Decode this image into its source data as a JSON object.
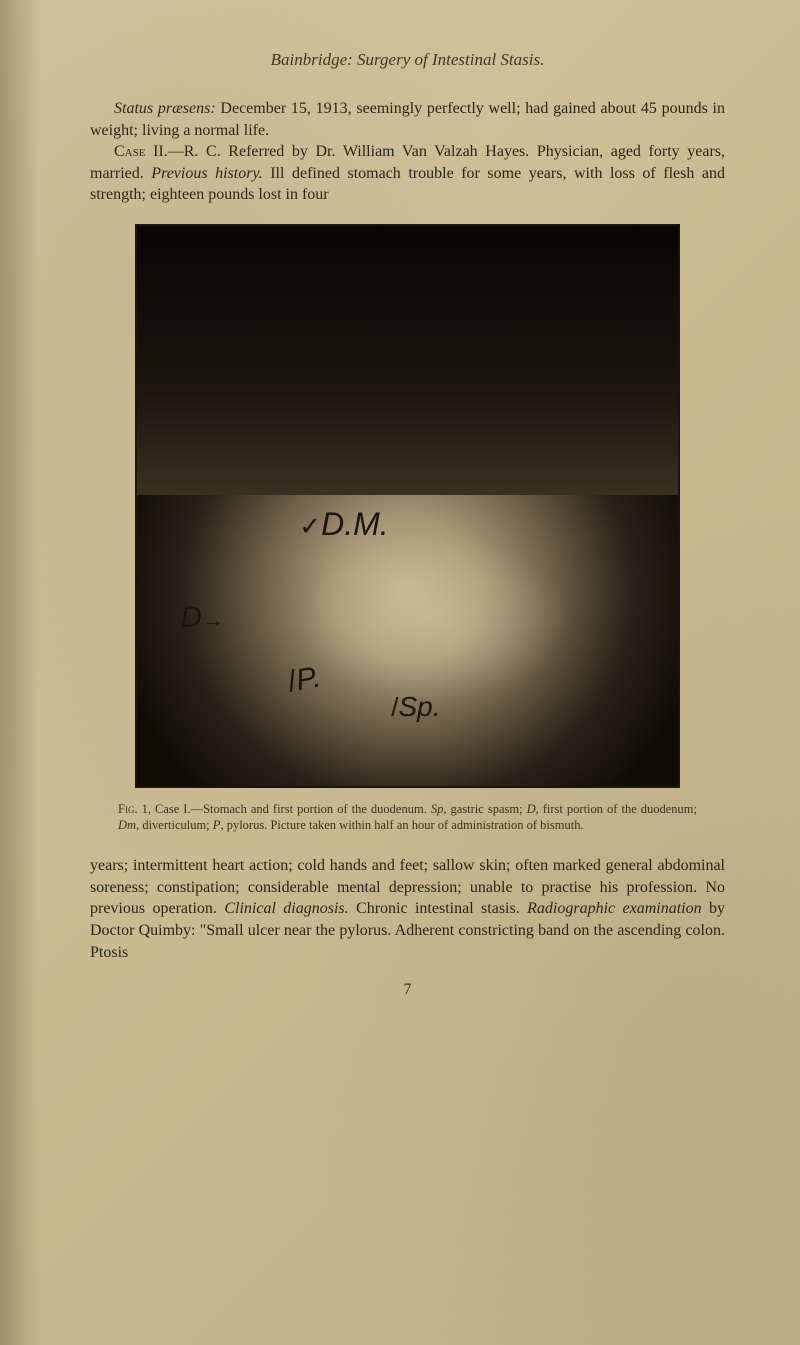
{
  "header": "Bainbridge: Surgery of Intestinal Stasis.",
  "paragraph1": {
    "status_praesens_label": "Status præsens:",
    "status_praesens_text": " December 15, 1913, seemingly perfectly well; had gained about 45 pounds in weight; living a normal life."
  },
  "paragraph2": {
    "case_label": "Case II.",
    "referred_text": "—R. C. Referred by Dr. William Van Valzah Hayes. Physician, aged forty years, married. ",
    "prev_history_label": "Previous history.",
    "prev_history_text": " Ill defined stomach trouble for some years, with loss of flesh and strength; eighteen pounds lost in four"
  },
  "figure": {
    "labels": {
      "dm": "D.M.",
      "d": "D",
      "p": "P.",
      "sp": "Sp."
    }
  },
  "caption": {
    "fig_label": "Fig. 1",
    "text_part1": ", Case I.—Stomach and first portion of the duodenum. ",
    "sp_label": "Sp",
    "text_part2": ", gastric spasm; ",
    "d_label": "D",
    "text_part3": ", first portion of the duodenum; ",
    "dm_label": "Dm",
    "text_part4": ", diverticulum; ",
    "p_label": "P",
    "text_part5": ", pylorus. Picture taken within half an hour of administration of bismuth."
  },
  "paragraph3": {
    "text_part1": "years; intermittent heart action; cold hands and feet; sallow skin; often marked general abdominal soreness; constipation; considerable mental depression; unable to practise his profession. No previous operation. ",
    "clinical_label": "Clinical diagnosis.",
    "text_part2": " Chronic intestinal stasis. ",
    "radio_label": "Radiographic examination",
    "text_part3": " by Doctor Quimby: \"Small ulcer near the pylorus. Adherent constricting band on the ascending colon. Ptosis"
  },
  "page_number": "7",
  "colors": {
    "page_bg_start": "#d4c5a0",
    "page_bg_end": "#beb088",
    "text_color": "#2a2418",
    "figure_border": "#1a1510",
    "figure_bg_dark": "#0a0806"
  },
  "typography": {
    "body_fontsize": 16,
    "header_fontsize": 17,
    "caption_fontsize": 12.5,
    "figure_label_fontsize": 30
  }
}
